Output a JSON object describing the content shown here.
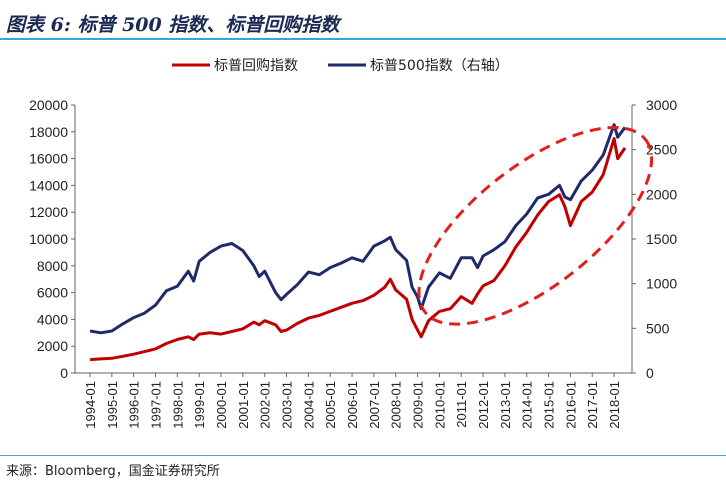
{
  "figure": {
    "title": "图表 6:  标普 500 指数、标普回购指数",
    "source": "来源：Bloomberg，国金证券研究所"
  },
  "colors": {
    "buyback": "#c00000",
    "sp500": "#1f2a6b",
    "rule": "#3aa6d8",
    "ellipse": "#e21f1f"
  },
  "chart_data": {
    "type": "line",
    "x": [
      "1994-01",
      "1994-07",
      "1995-01",
      "1995-07",
      "1996-01",
      "1996-07",
      "1997-01",
      "1997-07",
      "1998-01",
      "1998-07",
      "1998-10",
      "1999-01",
      "1999-07",
      "2000-01",
      "2000-07",
      "2001-01",
      "2001-07",
      "2001-10",
      "2002-01",
      "2002-07",
      "2002-10",
      "2003-01",
      "2003-07",
      "2004-01",
      "2004-07",
      "2005-01",
      "2005-07",
      "2006-01",
      "2006-07",
      "2007-01",
      "2007-07",
      "2007-10",
      "2008-01",
      "2008-07",
      "2008-10",
      "2009-01",
      "2009-03",
      "2009-07",
      "2010-01",
      "2010-07",
      "2011-01",
      "2011-07",
      "2011-10",
      "2012-01",
      "2012-07",
      "2013-01",
      "2013-07",
      "2014-01",
      "2014-07",
      "2015-01",
      "2015-07",
      "2015-10",
      "2016-01",
      "2016-07",
      "2017-01",
      "2017-07",
      "2018-01",
      "2018-03",
      "2018-07"
    ],
    "series": [
      {
        "name": "标普回购指数",
        "axis": "left",
        "values": [
          1000,
          1050,
          1100,
          1250,
          1400,
          1600,
          1800,
          2200,
          2500,
          2700,
          2500,
          2900,
          3000,
          2900,
          3100,
          3300,
          3800,
          3600,
          3900,
          3600,
          3100,
          3200,
          3700,
          4100,
          4300,
          4600,
          4900,
          5200,
          5400,
          5800,
          6400,
          7000,
          6200,
          5500,
          4000,
          3200,
          2700,
          3900,
          4600,
          4800,
          5700,
          5200,
          5900,
          6500,
          6900,
          8000,
          9400,
          10500,
          11800,
          12800,
          13300,
          12400,
          11000,
          12800,
          13500,
          14800,
          17500,
          16000,
          16800
        ]
      },
      {
        "name": "标普500指数（右轴）",
        "axis": "right",
        "values": [
          470,
          450,
          470,
          550,
          620,
          670,
          760,
          920,
          970,
          1140,
          1030,
          1250,
          1350,
          1420,
          1450,
          1370,
          1200,
          1080,
          1140,
          900,
          820,
          880,
          990,
          1130,
          1100,
          1180,
          1230,
          1290,
          1250,
          1420,
          1480,
          1520,
          1380,
          1260,
          960,
          850,
          720,
          960,
          1120,
          1060,
          1290,
          1290,
          1180,
          1310,
          1380,
          1470,
          1650,
          1780,
          1960,
          2000,
          2100,
          1970,
          1940,
          2150,
          2270,
          2440,
          2780,
          2640,
          2750
        ]
      }
    ],
    "xticks": [
      "1994-01",
      "1995-01",
      "1996-01",
      "1997-01",
      "1998-01",
      "1999-01",
      "2000-01",
      "2001-01",
      "2002-01",
      "2003-01",
      "2004-01",
      "2005-01",
      "2006-01",
      "2007-01",
      "2008-01",
      "2009-01",
      "2010-01",
      "2011-01",
      "2012-01",
      "2013-01",
      "2014-01",
      "2015-01",
      "2016-01",
      "2017-01",
      "2018-01"
    ],
    "ylim_left": [
      0,
      20000
    ],
    "yticks_left": [
      "0",
      "2000",
      "4000",
      "6000",
      "8000",
      "10000",
      "12000",
      "14000",
      "16000",
      "18000",
      "20000"
    ],
    "ylim_right": [
      0,
      3000
    ],
    "yticks_right": [
      "0",
      "500",
      "1000",
      "1500",
      "2000",
      "2500",
      "3000"
    ],
    "legend_position": "top-center",
    "annotation": "dashed red ellipse around 2009-01 to 2018 uptrend"
  }
}
